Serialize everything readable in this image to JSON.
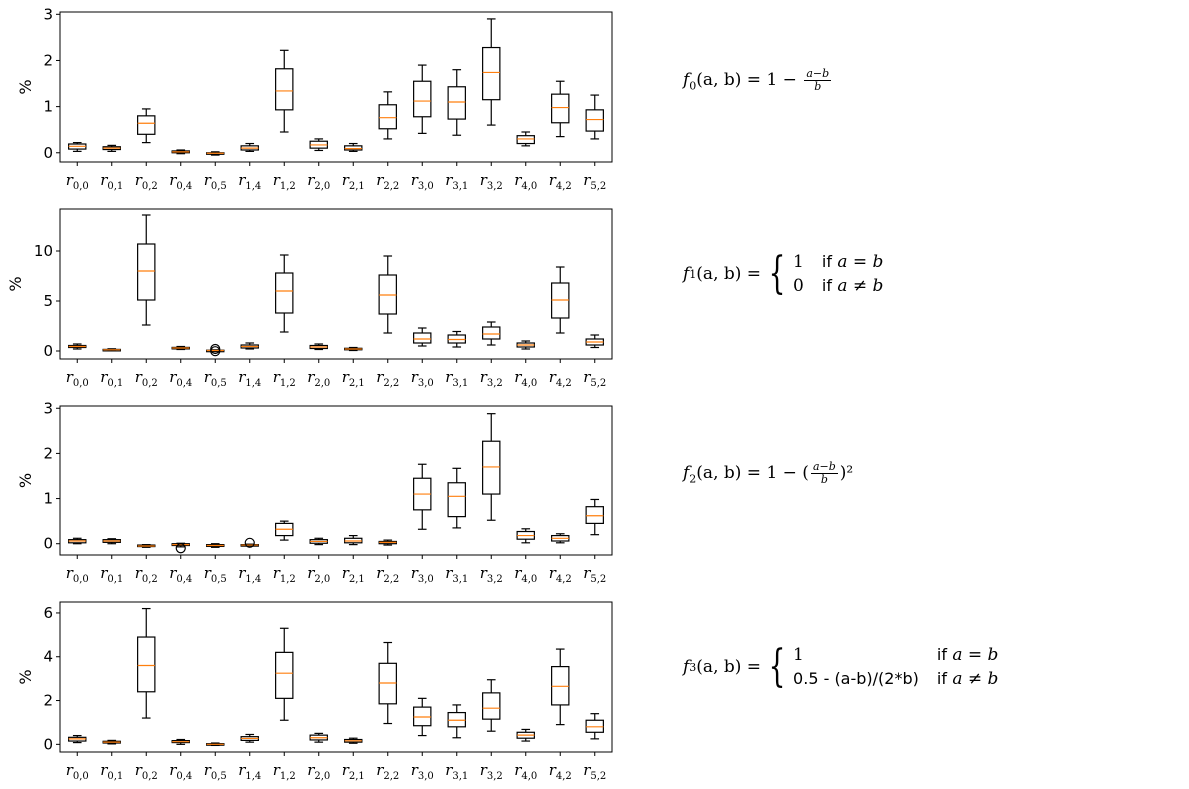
{
  "chart_data": [
    {
      "type": "box",
      "ylabel": "%",
      "categories": [
        "r_{0,0}",
        "r_{0,1}",
        "r_{0,2}",
        "r_{0,4}",
        "r_{0,5}",
        "r_{1,4}",
        "r_{1,2}",
        "r_{2,0}",
        "r_{2,1}",
        "r_{2,2}",
        "r_{3,0}",
        "r_{3,1}",
        "r_{3,2}",
        "r_{4,0}",
        "r_{4,2}",
        "r_{5,2}"
      ],
      "ylim": [
        -0.2,
        3.05
      ],
      "yticks": [
        0,
        1,
        2,
        3
      ],
      "boxes": [
        {
          "whisker_low": 0.03,
          "q1": 0.08,
          "median": 0.14,
          "q3": 0.19,
          "whisker_high": 0.22
        },
        {
          "whisker_low": 0.03,
          "q1": 0.07,
          "median": 0.1,
          "q3": 0.13,
          "whisker_high": 0.16
        },
        {
          "whisker_low": 0.22,
          "q1": 0.4,
          "median": 0.64,
          "q3": 0.8,
          "whisker_high": 0.95
        },
        {
          "whisker_low": -0.02,
          "q1": 0.0,
          "median": 0.02,
          "q3": 0.04,
          "whisker_high": 0.06
        },
        {
          "whisker_low": -0.05,
          "q1": -0.03,
          "median": -0.01,
          "q3": 0.0,
          "whisker_high": 0.02
        },
        {
          "whisker_low": 0.03,
          "q1": 0.06,
          "median": 0.1,
          "q3": 0.15,
          "whisker_high": 0.2
        },
        {
          "whisker_low": 0.45,
          "q1": 0.93,
          "median": 1.34,
          "q3": 1.82,
          "whisker_high": 2.22
        },
        {
          "whisker_low": 0.05,
          "q1": 0.1,
          "median": 0.17,
          "q3": 0.25,
          "whisker_high": 0.3
        },
        {
          "whisker_low": 0.03,
          "q1": 0.06,
          "median": 0.09,
          "q3": 0.15,
          "whisker_high": 0.2
        },
        {
          "whisker_low": 0.3,
          "q1": 0.52,
          "median": 0.76,
          "q3": 1.04,
          "whisker_high": 1.32
        },
        {
          "whisker_low": 0.42,
          "q1": 0.78,
          "median": 1.12,
          "q3": 1.55,
          "whisker_high": 1.9
        },
        {
          "whisker_low": 0.38,
          "q1": 0.73,
          "median": 1.1,
          "q3": 1.43,
          "whisker_high": 1.8
        },
        {
          "whisker_low": 0.6,
          "q1": 1.15,
          "median": 1.74,
          "q3": 2.28,
          "whisker_high": 2.9
        },
        {
          "whisker_low": 0.15,
          "q1": 0.2,
          "median": 0.3,
          "q3": 0.37,
          "whisker_high": 0.45
        },
        {
          "whisker_low": 0.35,
          "q1": 0.65,
          "median": 0.98,
          "q3": 1.27,
          "whisker_high": 1.55
        },
        {
          "whisker_low": 0.3,
          "q1": 0.47,
          "median": 0.72,
          "q3": 0.93,
          "whisker_high": 1.25
        }
      ]
    },
    {
      "type": "box",
      "ylabel": "%",
      "categories": [
        "r_{0,0}",
        "r_{0,1}",
        "r_{0,2}",
        "r_{0,4}",
        "r_{0,5}",
        "r_{1,4}",
        "r_{1,2}",
        "r_{2,0}",
        "r_{2,1}",
        "r_{2,2}",
        "r_{3,0}",
        "r_{3,1}",
        "r_{3,2}",
        "r_{4,0}",
        "r_{4,2}",
        "r_{5,2}"
      ],
      "ylim": [
        -0.8,
        14.2
      ],
      "yticks": [
        0,
        5,
        10
      ],
      "boxes": [
        {
          "whisker_low": 0.2,
          "q1": 0.35,
          "median": 0.45,
          "q3": 0.55,
          "whisker_high": 0.7
        },
        {
          "whisker_low": 0.02,
          "q1": 0.08,
          "median": 0.12,
          "q3": 0.16,
          "whisker_high": 0.22
        },
        {
          "whisker_low": 2.6,
          "q1": 5.1,
          "median": 8.0,
          "q3": 10.7,
          "whisker_high": 13.6
        },
        {
          "whisker_low": 0.15,
          "q1": 0.22,
          "median": 0.3,
          "q3": 0.36,
          "whisker_high": 0.45
        },
        {
          "whisker_low": 0.0,
          "q1": 0.02,
          "median": 0.05,
          "q3": 0.08,
          "whisker_high": 0.12,
          "outliers": [
            -0.02,
            0.2
          ]
        },
        {
          "whisker_low": 0.2,
          "q1": 0.3,
          "median": 0.45,
          "q3": 0.6,
          "whisker_high": 0.8
        },
        {
          "whisker_low": 1.9,
          "q1": 3.8,
          "median": 6.0,
          "q3": 7.8,
          "whisker_high": 9.6
        },
        {
          "whisker_low": 0.15,
          "q1": 0.25,
          "median": 0.4,
          "q3": 0.55,
          "whisker_high": 0.7
        },
        {
          "whisker_low": 0.05,
          "q1": 0.12,
          "median": 0.2,
          "q3": 0.27,
          "whisker_high": 0.35
        },
        {
          "whisker_low": 1.8,
          "q1": 3.7,
          "median": 5.6,
          "q3": 7.6,
          "whisker_high": 9.5
        },
        {
          "whisker_low": 0.5,
          "q1": 0.8,
          "median": 1.2,
          "q3": 1.8,
          "whisker_high": 2.3
        },
        {
          "whisker_low": 0.4,
          "q1": 0.8,
          "median": 1.15,
          "q3": 1.6,
          "whisker_high": 1.95
        },
        {
          "whisker_low": 0.6,
          "q1": 1.2,
          "median": 1.7,
          "q3": 2.4,
          "whisker_high": 2.9
        },
        {
          "whisker_low": 0.2,
          "q1": 0.4,
          "median": 0.6,
          "q3": 0.8,
          "whisker_high": 1.0
        },
        {
          "whisker_low": 1.8,
          "q1": 3.3,
          "median": 5.1,
          "q3": 6.8,
          "whisker_high": 8.4
        },
        {
          "whisker_low": 0.35,
          "q1": 0.6,
          "median": 0.9,
          "q3": 1.2,
          "whisker_high": 1.6
        }
      ]
    },
    {
      "type": "box",
      "ylabel": "%",
      "categories": [
        "r_{0,0}",
        "r_{0,1}",
        "r_{0,2}",
        "r_{0,4}",
        "r_{0,5}",
        "r_{1,4}",
        "r_{1,2}",
        "r_{2,0}",
        "r_{2,1}",
        "r_{2,2}",
        "r_{3,0}",
        "r_{3,1}",
        "r_{3,2}",
        "r_{4,0}",
        "r_{4,2}",
        "r_{5,2}"
      ],
      "ylim": [
        -0.25,
        3.05
      ],
      "yticks": [
        0,
        1,
        2,
        3
      ],
      "boxes": [
        {
          "whisker_low": 0.0,
          "q1": 0.02,
          "median": 0.06,
          "q3": 0.09,
          "whisker_high": 0.12
        },
        {
          "whisker_low": 0.0,
          "q1": 0.03,
          "median": 0.06,
          "q3": 0.09,
          "whisker_high": 0.11
        },
        {
          "whisker_low": -0.08,
          "q1": -0.06,
          "median": -0.05,
          "q3": -0.03,
          "whisker_high": -0.02
        },
        {
          "whisker_low": -0.07,
          "q1": -0.04,
          "median": -0.02,
          "q3": 0.0,
          "whisker_high": 0.01,
          "outliers": [
            -0.1
          ]
        },
        {
          "whisker_low": -0.08,
          "q1": -0.06,
          "median": -0.04,
          "q3": -0.02,
          "whisker_high": 0.0
        },
        {
          "whisker_low": -0.05,
          "q1": -0.04,
          "median": -0.03,
          "q3": -0.02,
          "whisker_high": -0.01,
          "outliers": [
            0.02
          ]
        },
        {
          "whisker_low": 0.08,
          "q1": 0.18,
          "median": 0.32,
          "q3": 0.45,
          "whisker_high": 0.5
        },
        {
          "whisker_low": -0.02,
          "q1": 0.01,
          "median": 0.05,
          "q3": 0.09,
          "whisker_high": 0.12
        },
        {
          "whisker_low": -0.02,
          "q1": 0.02,
          "median": 0.06,
          "q3": 0.12,
          "whisker_high": 0.18
        },
        {
          "whisker_low": -0.03,
          "q1": 0.0,
          "median": 0.03,
          "q3": 0.05,
          "whisker_high": 0.08
        },
        {
          "whisker_low": 0.32,
          "q1": 0.75,
          "median": 1.1,
          "q3": 1.45,
          "whisker_high": 1.76
        },
        {
          "whisker_low": 0.35,
          "q1": 0.6,
          "median": 1.05,
          "q3": 1.35,
          "whisker_high": 1.67
        },
        {
          "whisker_low": 0.52,
          "q1": 1.1,
          "median": 1.7,
          "q3": 2.27,
          "whisker_high": 2.88
        },
        {
          "whisker_low": 0.02,
          "q1": 0.1,
          "median": 0.18,
          "q3": 0.27,
          "whisker_high": 0.33
        },
        {
          "whisker_low": 0.02,
          "q1": 0.06,
          "median": 0.12,
          "q3": 0.18,
          "whisker_high": 0.22
        },
        {
          "whisker_low": 0.2,
          "q1": 0.45,
          "median": 0.62,
          "q3": 0.82,
          "whisker_high": 0.98
        }
      ]
    },
    {
      "type": "box",
      "ylabel": "%",
      "categories": [
        "r_{0,0}",
        "r_{0,1}",
        "r_{0,2}",
        "r_{0,4}",
        "r_{0,5}",
        "r_{1,4}",
        "r_{1,2}",
        "r_{2,0}",
        "r_{2,1}",
        "r_{2,2}",
        "r_{3,0}",
        "r_{3,1}",
        "r_{3,2}",
        "r_{4,0}",
        "r_{4,2}",
        "r_{5,2}"
      ],
      "ylim": [
        -0.35,
        6.5
      ],
      "yticks": [
        0,
        2,
        4,
        6
      ],
      "boxes": [
        {
          "whisker_low": 0.08,
          "q1": 0.15,
          "median": 0.25,
          "q3": 0.32,
          "whisker_high": 0.4
        },
        {
          "whisker_low": 0.02,
          "q1": 0.06,
          "median": 0.1,
          "q3": 0.14,
          "whisker_high": 0.18
        },
        {
          "whisker_low": 1.2,
          "q1": 2.4,
          "median": 3.6,
          "q3": 4.9,
          "whisker_high": 6.2
        },
        {
          "whisker_low": 0.0,
          "q1": 0.08,
          "median": 0.12,
          "q3": 0.17,
          "whisker_high": 0.22
        },
        {
          "whisker_low": -0.05,
          "q1": -0.02,
          "median": 0.0,
          "q3": 0.03,
          "whisker_high": 0.06
        },
        {
          "whisker_low": 0.1,
          "q1": 0.18,
          "median": 0.27,
          "q3": 0.35,
          "whisker_high": 0.45
        },
        {
          "whisker_low": 1.1,
          "q1": 2.1,
          "median": 3.25,
          "q3": 4.2,
          "whisker_high": 5.3
        },
        {
          "whisker_low": 0.1,
          "q1": 0.2,
          "median": 0.3,
          "q3": 0.42,
          "whisker_high": 0.5
        },
        {
          "whisker_low": 0.05,
          "q1": 0.1,
          "median": 0.16,
          "q3": 0.22,
          "whisker_high": 0.28
        },
        {
          "whisker_low": 0.95,
          "q1": 1.85,
          "median": 2.8,
          "q3": 3.7,
          "whisker_high": 4.65
        },
        {
          "whisker_low": 0.4,
          "q1": 0.85,
          "median": 1.25,
          "q3": 1.7,
          "whisker_high": 2.1
        },
        {
          "whisker_low": 0.3,
          "q1": 0.8,
          "median": 1.1,
          "q3": 1.45,
          "whisker_high": 1.8
        },
        {
          "whisker_low": 0.6,
          "q1": 1.15,
          "median": 1.65,
          "q3": 2.35,
          "whisker_high": 2.95
        },
        {
          "whisker_low": 0.15,
          "q1": 0.28,
          "median": 0.42,
          "q3": 0.55,
          "whisker_high": 0.68
        },
        {
          "whisker_low": 0.9,
          "q1": 1.8,
          "median": 2.65,
          "q3": 3.55,
          "whisker_high": 4.35
        },
        {
          "whisker_low": 0.25,
          "q1": 0.55,
          "median": 0.8,
          "q3": 1.1,
          "whisker_high": 1.4
        }
      ]
    }
  ],
  "formulas": {
    "f0": {
      "lhs": "f",
      "sub": "0",
      "args": "(a, b) = 1 −",
      "num": "a−b",
      "den": "b"
    },
    "f1": {
      "lhs": "f",
      "sub": "1",
      "args": "(a, b) =",
      "rows": [
        {
          "value": "1",
          "cond_word": "if",
          "cond": "a = b"
        },
        {
          "value": "0",
          "cond_word": "if",
          "cond": "a ≠ b"
        }
      ]
    },
    "f2": {
      "lhs": "f",
      "sub": "2",
      "args": "(a, b) = 1 − (",
      "num": "a−b",
      "den": "b",
      "tail": ")²"
    },
    "f3": {
      "lhs": "f",
      "sub": "3",
      "args": "(a, b) =",
      "rows": [
        {
          "value": "1",
          "cond_word": "if",
          "cond": "a = b"
        },
        {
          "value": "0.5 - (a-b)/(2*b)",
          "cond_word": "if",
          "cond": "a ≠ b"
        }
      ]
    }
  },
  "colors": {
    "median": "#ff7f0e",
    "box": "#000000"
  }
}
